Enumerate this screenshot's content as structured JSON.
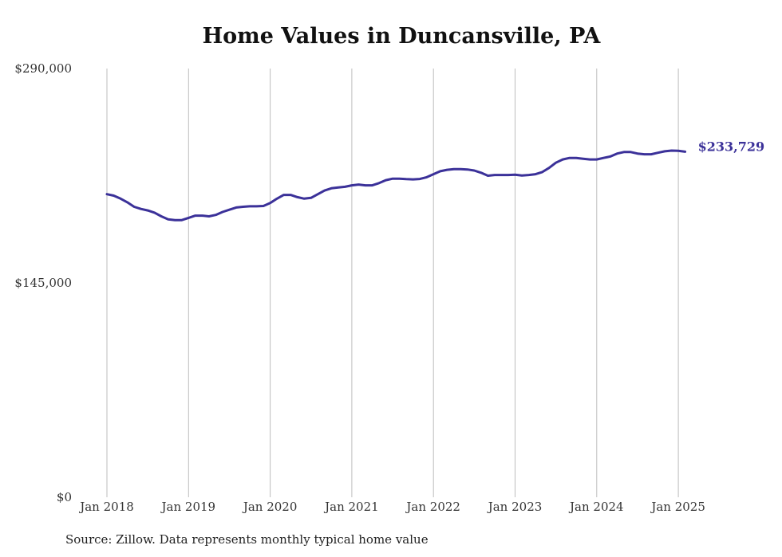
{
  "chart_data": {
    "type": "line",
    "title": "Home Values in Duncansville, PA",
    "source": "Source: Zillow. Data represents monthly typical home value",
    "ylim": [
      0,
      290000
    ],
    "ytick_values": [
      0,
      145000,
      290000
    ],
    "ytick_labels": [
      "$0",
      "$145,000",
      "$290,000"
    ],
    "xtick_labels": [
      "Jan 2018",
      "Jan 2019",
      "Jan 2020",
      "Jan 2021",
      "Jan 2022",
      "Jan 2023",
      "Jan 2024",
      "Jan 2025"
    ],
    "grid": "vertical",
    "line_color": "#3b3199",
    "end_label": "$233,729",
    "x_start": "2018-01",
    "series": [
      {
        "values": [
          205000,
          204000,
          202000,
          199500,
          196500,
          195000,
          194000,
          192500,
          190000,
          188000,
          187500,
          187500,
          189000,
          190500,
          190500,
          190000,
          191000,
          193000,
          194500,
          196000,
          196500,
          196800,
          196800,
          197000,
          199000,
          202000,
          204500,
          204500,
          203000,
          202000,
          202500,
          205000,
          207500,
          209000,
          209500,
          210000,
          211000,
          211500,
          211000,
          211000,
          212500,
          214500,
          215500,
          215500,
          215200,
          215000,
          215300,
          216500,
          218500,
          220500,
          221500,
          222000,
          222000,
          221700,
          221000,
          219500,
          217500,
          218000,
          218000,
          218000,
          218200,
          217600,
          218000,
          218500,
          220000,
          222800,
          226300,
          228500,
          229500,
          229500,
          229000,
          228500,
          228500,
          229500,
          230500,
          232500,
          233500,
          233500,
          232500,
          232000,
          232000,
          233000,
          234000,
          234500,
          234300,
          233729
        ]
      }
    ]
  }
}
